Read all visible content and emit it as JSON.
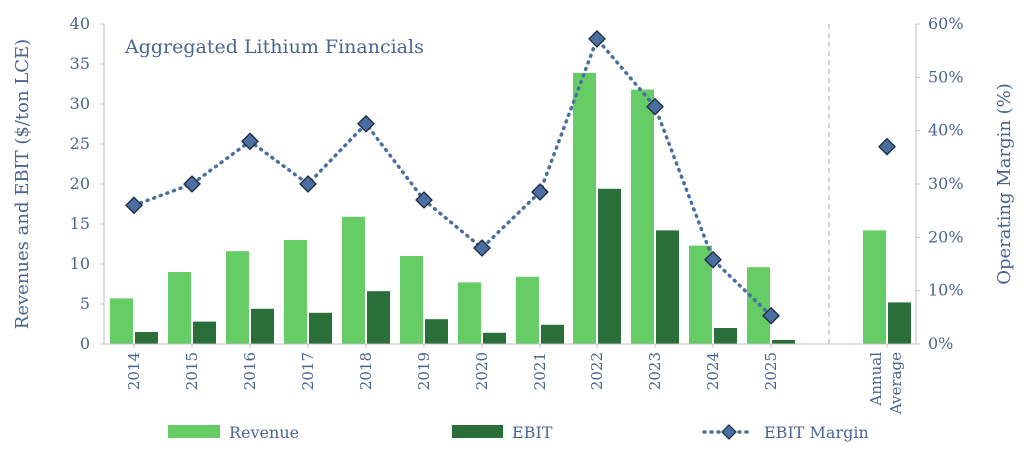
{
  "chart_data": {
    "type": "bar",
    "title": "Aggregated Lithium Financials",
    "ylabel": "Revenues and EBIT ($/ton LCE)",
    "y2label": "Operating Margin (%)",
    "ylim": [
      0,
      40
    ],
    "y2lim": [
      0,
      60
    ],
    "yticks": [
      "0",
      "5",
      "10",
      "15",
      "20",
      "25",
      "30",
      "35",
      "40"
    ],
    "y2ticks": [
      "0%",
      "10%",
      "20%",
      "30%",
      "40%",
      "50%",
      "60%"
    ],
    "categories": [
      "2014",
      "2015",
      "2016",
      "2017",
      "2018",
      "2019",
      "2020",
      "2021",
      "2022",
      "2023",
      "2024",
      "2025",
      "Annual Average"
    ],
    "series": [
      {
        "name": "Revenue",
        "kind": "bar",
        "axis": "left",
        "color": "#66cc66",
        "values": [
          5.7,
          9.0,
          11.6,
          13.0,
          15.9,
          11.0,
          7.7,
          8.4,
          33.9,
          31.8,
          12.3,
          9.6,
          14.2
        ]
      },
      {
        "name": "EBIT",
        "kind": "bar",
        "axis": "left",
        "color": "#2a6e3a",
        "values": [
          1.5,
          2.8,
          4.4,
          3.9,
          6.6,
          3.1,
          1.4,
          2.4,
          19.4,
          14.2,
          2.0,
          0.5,
          5.2
        ]
      },
      {
        "name": "EBIT Margin",
        "kind": "line-markers",
        "axis": "right",
        "color": "#4a6ea0",
        "values": [
          26,
          30,
          38,
          30,
          41.3,
          27,
          18,
          28.5,
          57.2,
          44.5,
          15.8,
          5.3,
          37
        ]
      }
    ],
    "legend": "bottom",
    "grid": false,
    "separator_before": "Annual Average"
  }
}
